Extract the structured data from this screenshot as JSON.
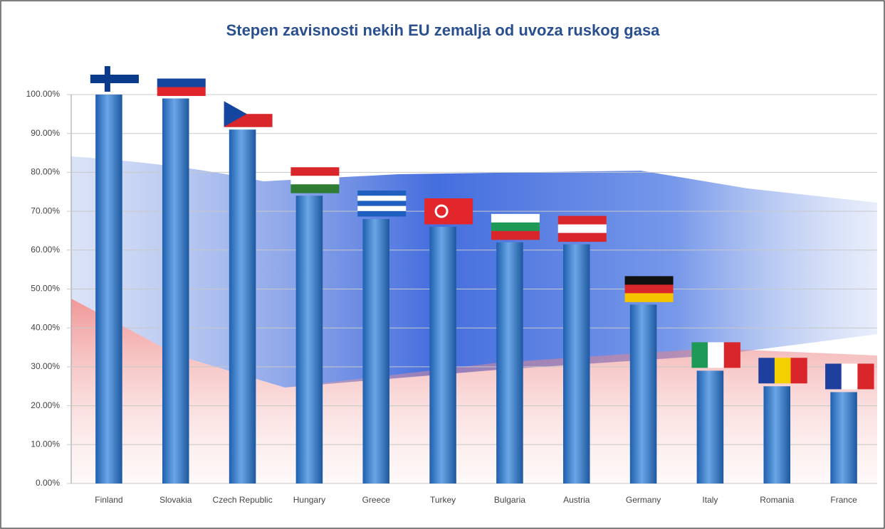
{
  "chart_data": {
    "type": "bar",
    "title": "Stepen zavisnosti nekih EU zemalja od uvoza ruskog gasa",
    "categories": [
      "Finland",
      "Slovakia",
      "Czech Republic",
      "Hungary",
      "Greece",
      "Turkey",
      "Bulgaria",
      "Austria",
      "Germany",
      "Italy",
      "Romania",
      "France"
    ],
    "values": [
      100,
      99,
      91,
      74,
      68,
      66,
      62,
      61.5,
      46,
      29,
      25,
      23.5
    ],
    "color": "#3a7fcc",
    "ylim": [
      0,
      100
    ],
    "yticks": [
      {
        "value": 0,
        "label": "0.00%"
      },
      {
        "value": 10,
        "label": "10.00%"
      },
      {
        "value": 20,
        "label": "20.00%"
      },
      {
        "value": 30,
        "label": "30.00%"
      },
      {
        "value": 40,
        "label": "40.00%"
      },
      {
        "value": 50,
        "label": "50.00%"
      },
      {
        "value": 60,
        "label": "60.00%"
      },
      {
        "value": 70,
        "label": "70.00%"
      },
      {
        "value": 80,
        "label": "80.00%"
      },
      {
        "value": 90,
        "label": "90.00%"
      },
      {
        "value": 100,
        "label": "100.00%"
      }
    ],
    "grid": true
  }
}
